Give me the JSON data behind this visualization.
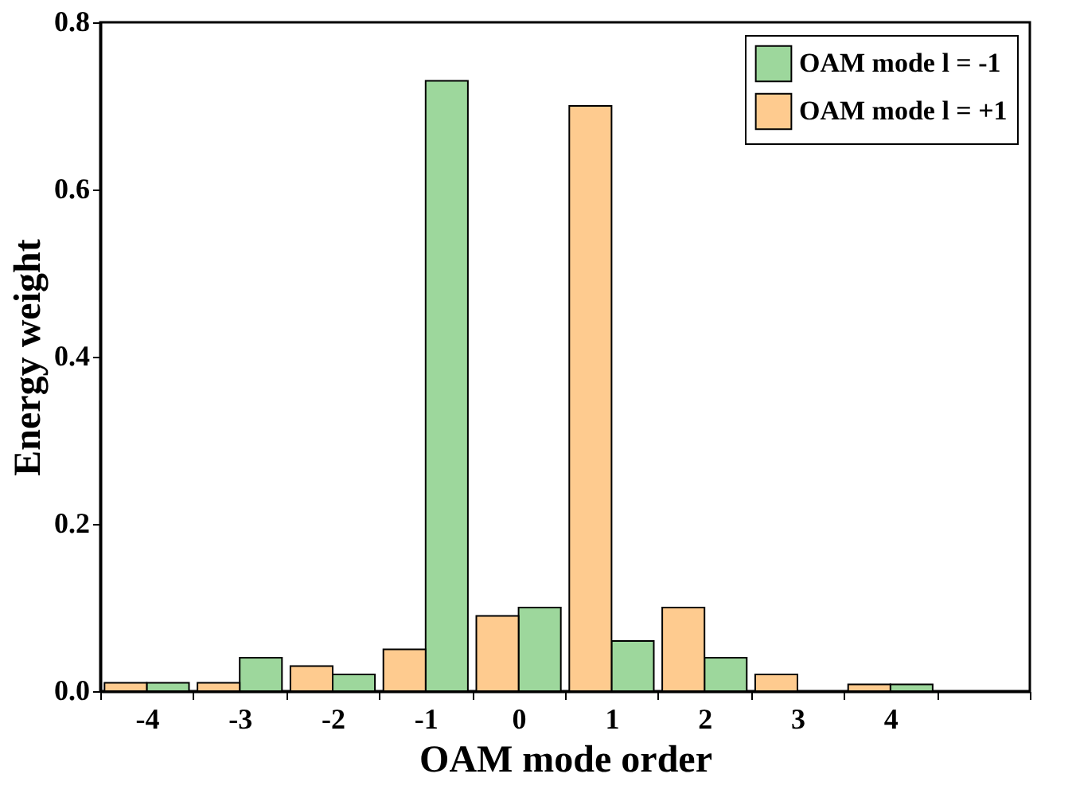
{
  "chart_data": {
    "type": "bar",
    "xlabel": "OAM mode order",
    "ylabel": "Energy weight",
    "categories": [
      "-4",
      "-3",
      "-2",
      "-1",
      "0",
      "1",
      "2",
      "3",
      "4",
      null
    ],
    "series": [
      {
        "name": "OAM mode l = -1",
        "color": "#9dd79c",
        "values": [
          0.01,
          0.04,
          0.02,
          0.73,
          0.1,
          0.06,
          0.04,
          null,
          0.008,
          null
        ]
      },
      {
        "name": "OAM mode l = +1",
        "color": "#fecb8f",
        "values": [
          0.01,
          0.01,
          0.03,
          0.05,
          0.09,
          0.7,
          0.1,
          0.02,
          0.008,
          null
        ]
      }
    ],
    "ylim": [
      0,
      0.8
    ],
    "yticks": [
      {
        "value": 0,
        "label": "0.0"
      },
      0.2,
      0.4,
      0.6,
      0.8
    ],
    "grid": false,
    "legend": "top right"
  }
}
